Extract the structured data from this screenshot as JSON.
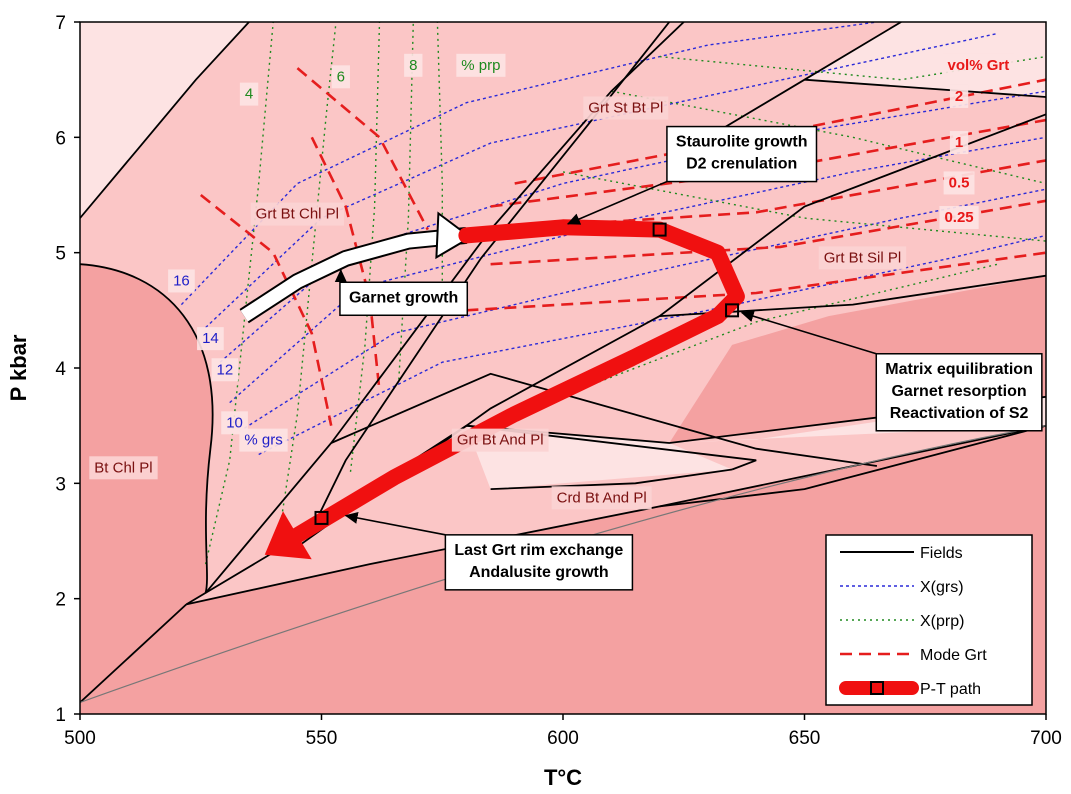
{
  "chart_data": {
    "type": "phase-diagram",
    "xlabel": "T°C",
    "ylabel": "P kbar",
    "xlim": [
      500,
      700
    ],
    "ylim": [
      1,
      7
    ],
    "xticks": [
      500,
      550,
      600,
      650,
      700
    ],
    "yticks": [
      1,
      2,
      3,
      4,
      5,
      6,
      7
    ],
    "colors": {
      "plot_bg": "#fbc6c6",
      "light_field": "#fde3e3",
      "dark_field": "#f4a1a1",
      "field_line": "#000000",
      "grs": "#2a2ad8",
      "prp": "#1f8a1f",
      "mode": "#e51d1d",
      "path": "#f01010"
    },
    "field_labels": [
      {
        "text": "Grt St Bt Pl",
        "x": 613,
        "y": 6.25
      },
      {
        "text": "Grt Bt Chl Pl",
        "x": 545,
        "y": 5.33
      },
      {
        "text": "Grt Bt Sil Pl",
        "x": 662,
        "y": 4.95
      },
      {
        "text": "Grt Bt And Pl",
        "x": 587,
        "y": 3.37
      },
      {
        "text": "Crd Bt And Pl",
        "x": 608,
        "y": 2.87
      },
      {
        "text": "Bt Chl Pl",
        "x": 509,
        "y": 3.13
      }
    ],
    "grs_labels": [
      {
        "text": "16",
        "x": 521,
        "y": 4.75
      },
      {
        "text": "14",
        "x": 527,
        "y": 4.25
      },
      {
        "text": "12",
        "x": 530,
        "y": 3.98
      },
      {
        "text": "10",
        "x": 532,
        "y": 3.52
      },
      {
        "text": "% grs",
        "x": 538,
        "y": 3.37
      }
    ],
    "prp_labels": [
      {
        "text": "4",
        "x": 535,
        "y": 6.37
      },
      {
        "text": "6",
        "x": 554,
        "y": 6.52
      },
      {
        "text": "8",
        "x": 569,
        "y": 6.62
      },
      {
        "text": "% prp",
        "x": 583,
        "y": 6.62
      }
    ],
    "mode_labels": [
      {
        "text": "vol% Grt",
        "x": 686,
        "y": 6.62
      },
      {
        "text": "2",
        "x": 682,
        "y": 6.35
      },
      {
        "text": "1",
        "x": 682,
        "y": 5.95
      },
      {
        "text": "0.5",
        "x": 682,
        "y": 5.6
      },
      {
        "text": "0.25",
        "x": 682,
        "y": 5.3
      }
    ],
    "pt_path": [
      [
        580,
        5.15
      ],
      [
        600,
        5.22
      ],
      [
        620,
        5.2
      ],
      [
        632,
        5.0
      ],
      [
        636,
        4.62
      ],
      [
        632,
        4.45
      ],
      [
        615,
        4.1
      ],
      [
        590,
        3.6
      ],
      [
        565,
        3.05
      ],
      [
        545,
        2.55
      ]
    ],
    "pt_points": [
      [
        620,
        5.2
      ],
      [
        635,
        4.5
      ],
      [
        550,
        2.7
      ]
    ],
    "garnet_arrow": [
      [
        534,
        4.45
      ],
      [
        545,
        4.75
      ],
      [
        555,
        4.95
      ],
      [
        568,
        5.1
      ],
      [
        580,
        5.15
      ]
    ],
    "callouts": [
      {
        "lines": [
          "Staurolite growth",
          "D2 crenulation"
        ],
        "x": 637,
        "y": 5.92,
        "target": [
          601,
          5.25
        ]
      },
      {
        "lines": [
          "Garnet growth"
        ],
        "x": 567,
        "y": 4.57,
        "target": [
          554,
          4.85
        ]
      },
      {
        "lines": [
          "Matrix equilibration",
          "Garnet resorption",
          "Reactivation of S2"
        ],
        "x": 682,
        "y": 3.95,
        "target": [
          637,
          4.48
        ]
      },
      {
        "lines": [
          "Last Grt rim exchange",
          "Andalusite growth"
        ],
        "x": 595,
        "y": 2.38,
        "target": [
          555,
          2.72
        ]
      }
    ],
    "legend": [
      {
        "label": "Fields",
        "style": "solid"
      },
      {
        "label": "X(grs)",
        "style": "grs"
      },
      {
        "label": "X(prp)",
        "style": "prp"
      },
      {
        "label": "Mode Grt",
        "style": "mode"
      },
      {
        "label": "P-T path",
        "style": "path"
      }
    ]
  }
}
